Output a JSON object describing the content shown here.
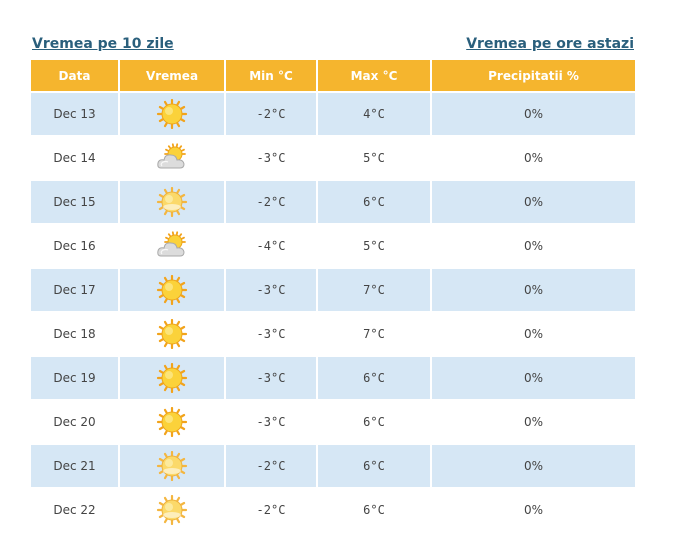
{
  "links": {
    "ten_days": "Vremea pe 10 zile",
    "hourly_today": "Vremea pe ore astazi"
  },
  "table": {
    "headers": [
      "Data",
      "Vremea",
      "Min °C",
      "Max °C",
      "Precipitatii %"
    ],
    "rows": [
      {
        "date": "Dec 13",
        "icon": "sun-icon",
        "min": "-2°C",
        "max": "4°C",
        "precip": "0%"
      },
      {
        "date": "Dec 14",
        "icon": "cloudy-sun-icon",
        "min": "-3°C",
        "max": "5°C",
        "precip": "0%"
      },
      {
        "date": "Dec 15",
        "icon": "hazy-sun-icon",
        "min": "-2°C",
        "max": "6°C",
        "precip": "0%"
      },
      {
        "date": "Dec 16",
        "icon": "cloudy-sun-icon",
        "min": "-4°C",
        "max": "5°C",
        "precip": "0%"
      },
      {
        "date": "Dec 17",
        "icon": "sun-icon",
        "min": "-3°C",
        "max": "7°C",
        "precip": "0%"
      },
      {
        "date": "Dec 18",
        "icon": "sun-icon",
        "min": "-3°C",
        "max": "7°C",
        "precip": "0%"
      },
      {
        "date": "Dec 19",
        "icon": "sun-icon",
        "min": "-3°C",
        "max": "6°C",
        "precip": "0%"
      },
      {
        "date": "Dec 20",
        "icon": "sun-icon",
        "min": "-3°C",
        "max": "6°C",
        "precip": "0%"
      },
      {
        "date": "Dec 21",
        "icon": "hazy-sun-icon",
        "min": "-2°C",
        "max": "6°C",
        "precip": "0%"
      },
      {
        "date": "Dec 22",
        "icon": "hazy-sun-icon",
        "min": "-2°C",
        "max": "6°C",
        "precip": "0%"
      }
    ]
  },
  "colors": {
    "header_bg": "#f5b52e",
    "alt_row_bg": "#d6e7f5",
    "link": "#2a5f7c"
  }
}
